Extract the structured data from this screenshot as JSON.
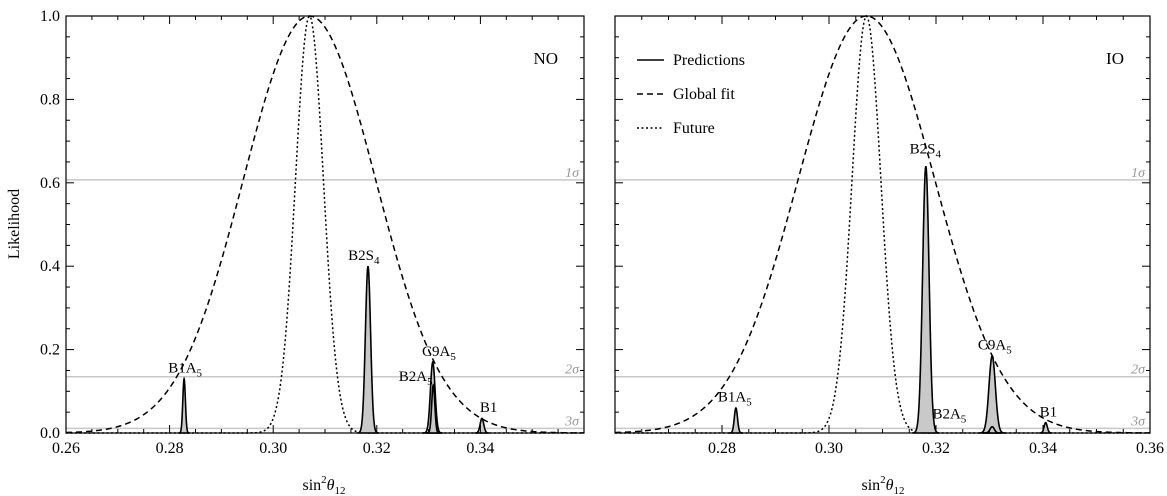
{
  "figure": {
    "ylabel": "Likelihood",
    "xlabel_base": "sin",
    "xlabel_sup": "2",
    "xlabel_theta": "θ",
    "xlabel_sub": "12"
  },
  "colors": {
    "axis": "#000000",
    "sigma_line": "#c8c8c8",
    "sigma_text": "#999999",
    "fill": "#c9c9c9"
  },
  "legend": [
    {
      "label": "Predictions",
      "dash": "solid"
    },
    {
      "label": "Global fit",
      "dash": "dashed"
    },
    {
      "label": "Future",
      "dash": "dotted"
    }
  ],
  "chart_data": [
    {
      "type": "line",
      "panel_label": "NO",
      "xlim": [
        0.26,
        0.36
      ],
      "ylim": [
        0.0,
        1.0
      ],
      "xticks": [
        "0.26",
        "0.28",
        "0.30",
        "0.32",
        "0.34"
      ],
      "yticks": [
        "0.0",
        "0.2",
        "0.4",
        "0.6",
        "0.8",
        "1.0"
      ],
      "global_fit": {
        "center": 0.307,
        "sigma": 0.0128
      },
      "future": {
        "center": 0.307,
        "sigma": 0.0027
      },
      "sigma_levels": [
        {
          "label": "1σ",
          "value": 0.607
        },
        {
          "label": "2σ",
          "value": 0.135
        },
        {
          "label": "3σ",
          "value": 0.011
        }
      ],
      "peaks": [
        {
          "center": 0.2828,
          "height": 0.13,
          "width": 0.00025,
          "label": "B1A",
          "sub": "5",
          "label_x": 0.283,
          "label_y": 0.145
        },
        {
          "center": 0.3183,
          "height": 0.4,
          "width": 0.0005,
          "label": "B2S",
          "sub": "4",
          "label_x": 0.3175,
          "label_y": 0.415
        },
        {
          "center": 0.3308,
          "height": 0.17,
          "width": 0.00045,
          "label": "C9A",
          "sub": "5",
          "label_x": 0.332,
          "label_y": 0.185
        },
        {
          "center": 0.3309,
          "height": 0.115,
          "width": 0.0003,
          "label": "B2A",
          "sub": "5",
          "label_x": 0.3275,
          "label_y": 0.125
        },
        {
          "center": 0.3403,
          "height": 0.035,
          "width": 0.00035,
          "label": "B1",
          "sub": "",
          "label_x": 0.3416,
          "label_y": 0.05
        }
      ]
    },
    {
      "type": "line",
      "panel_label": "IO",
      "xlim": [
        0.26,
        0.36
      ],
      "ylim": [
        0.0,
        1.0
      ],
      "xticks": [
        "0.28",
        "0.30",
        "0.32",
        "0.34",
        "0.36"
      ],
      "yticks": [],
      "global_fit": {
        "center": 0.307,
        "sigma": 0.0128
      },
      "future": {
        "center": 0.307,
        "sigma": 0.0027
      },
      "sigma_levels": [
        {
          "label": "1σ",
          "value": 0.607
        },
        {
          "label": "2σ",
          "value": 0.135
        },
        {
          "label": "3σ",
          "value": 0.011
        }
      ],
      "peaks": [
        {
          "center": 0.2826,
          "height": 0.06,
          "width": 0.0003,
          "label": "B1A",
          "sub": "5",
          "label_x": 0.2824,
          "label_y": 0.075
        },
        {
          "center": 0.3181,
          "height": 0.64,
          "width": 0.0006,
          "label": "B2S",
          "sub": "4",
          "label_x": 0.318,
          "label_y": 0.67
        },
        {
          "center": 0.3305,
          "height": 0.185,
          "width": 0.0006,
          "label": "C9A",
          "sub": "5",
          "label_x": 0.331,
          "label_y": 0.2
        },
        {
          "center": 0.3305,
          "height": 0.015,
          "width": 0.0004,
          "label": "B2A",
          "sub": "5",
          "label_x": 0.3225,
          "label_y": 0.035
        },
        {
          "center": 0.3405,
          "height": 0.025,
          "width": 0.0003,
          "label": "B1",
          "sub": "",
          "label_x": 0.341,
          "label_y": 0.04
        }
      ]
    }
  ]
}
